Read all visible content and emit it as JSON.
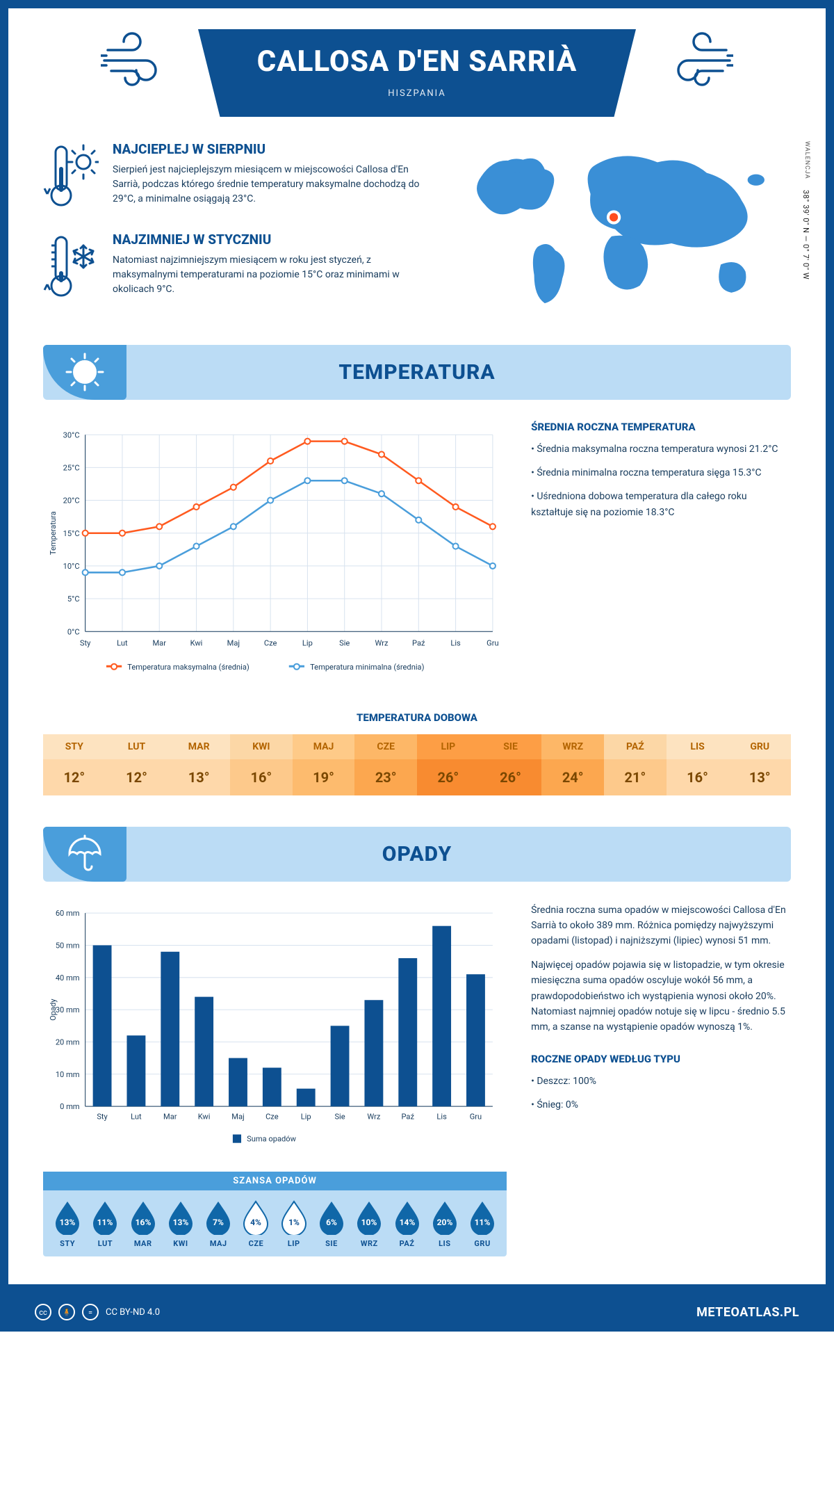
{
  "header": {
    "title": "CALLOSA D'EN SARRIÀ",
    "country": "HISZPANIA"
  },
  "facts": {
    "hot": {
      "title": "NAJCIEPLEJ W SIERPNIU",
      "body": "Sierpień jest najcieplejszym miesiącem w miejscowości Callosa d'En Sarrià, podczas którego średnie temperatury maksymalne dochodzą do 29°C, a minimalne osiągają 23°C."
    },
    "cold": {
      "title": "NAJZIMNIEJ W STYCZNIU",
      "body": "Natomiast najzimniejszym miesiącem w roku jest styczeń, z maksymalnymi temperaturami na poziomie 15°C oraz minimami w okolicach 9°C."
    }
  },
  "coords": {
    "region": "WALENCJA",
    "text": "38° 39' 0\" N — 0° 7' 0\" W"
  },
  "temperature": {
    "section_title": "TEMPERATURA",
    "side_title": "ŚREDNIA ROCZNA TEMPERATURA",
    "bullets": [
      "Średnia maksymalna roczna temperatura wynosi 21.2°C",
      "Średnia minimalna roczna temperatura sięga 15.3°C",
      "Uśredniona dobowa temperatura dla całego roku kształtuje się na poziomie 18.3°C"
    ],
    "chart": {
      "months": [
        "Sty",
        "Lut",
        "Mar",
        "Kwi",
        "Maj",
        "Cze",
        "Lip",
        "Sie",
        "Wrz",
        "Paź",
        "Lis",
        "Gru"
      ],
      "max": [
        15,
        15,
        16,
        19,
        22,
        26,
        29,
        29,
        27,
        23,
        19,
        16
      ],
      "min": [
        9,
        9,
        10,
        13,
        16,
        20,
        23,
        23,
        21,
        17,
        13,
        10
      ],
      "ylim": [
        0,
        30
      ],
      "ytick_step": 5,
      "ylabel": "Temperatura",
      "legend_max": "Temperatura maksymalna (średnia)",
      "legend_min": "Temperatura minimalna (średnia)",
      "color_max": "#ff5a1f",
      "color_min": "#4a9edb",
      "grid_color": "#d8e3ef",
      "axis_label_color": "#173b5c",
      "label_fontsize": 11
    },
    "daily_title": "TEMPERATURA DOBOWA",
    "daily": {
      "months": [
        "STY",
        "LUT",
        "MAR",
        "KWI",
        "MAJ",
        "CZE",
        "LIP",
        "SIE",
        "WRZ",
        "PAŹ",
        "LIS",
        "GRU"
      ],
      "values": [
        "12°",
        "12°",
        "13°",
        "16°",
        "19°",
        "23°",
        "26°",
        "26°",
        "24°",
        "21°",
        "16°",
        "13°"
      ],
      "head_colors": [
        "#fde3c0",
        "#fde3c0",
        "#fde3c0",
        "#fcd7a6",
        "#feca88",
        "#fdb767",
        "#fd9e45",
        "#fd9e45",
        "#fdb767",
        "#fcd7a6",
        "#fde3c0",
        "#fde3c0"
      ],
      "val_colors": [
        "#fed8aa",
        "#fed8aa",
        "#fed8aa",
        "#fdc98b",
        "#fdbb6e",
        "#fca74f",
        "#f88b30",
        "#f88b30",
        "#fca74f",
        "#fdc98b",
        "#fed8aa",
        "#fed8aa"
      ]
    }
  },
  "precip": {
    "section_title": "OPADY",
    "para1": "Średnia roczna suma opadów w miejscowości Callosa d'En Sarrià to około 389 mm. Różnica pomiędzy najwyższymi opadami (listopad) i najniższymi (lipiec) wynosi 51 mm.",
    "para2": "Najwięcej opadów pojawia się w listopadzie, w tym okresie miesięczna suma opadów oscyluje wokół 56 mm, a prawdopodobieństwo ich wystąpienia wynosi około 20%. Natomiast najmniej opadów notuje się w lipcu - średnio 5.5 mm, a szanse na wystąpienie opadów wynoszą 1%.",
    "type_title": "ROCZNE OPADY WEDŁUG TYPU",
    "type_bullets": [
      "Deszcz: 100%",
      "Śnieg: 0%"
    ],
    "chart": {
      "months": [
        "Sty",
        "Lut",
        "Mar",
        "Kwi",
        "Maj",
        "Cze",
        "Lip",
        "Sie",
        "Wrz",
        "Paź",
        "Lis",
        "Gru"
      ],
      "values": [
        50,
        22,
        48,
        34,
        15,
        12,
        5.5,
        25,
        33,
        46,
        56,
        41
      ],
      "ylim": [
        0,
        60
      ],
      "ytick_step": 10,
      "ylabel": "Opady",
      "legend": "Suma opadów",
      "bar_color": "#0d5091",
      "grid_color": "#d8e3ef",
      "axis_label_color": "#173b5c",
      "label_fontsize": 11
    },
    "chance": {
      "title": "SZANSA OPADÓW",
      "months": [
        "STY",
        "LUT",
        "MAR",
        "KWI",
        "MAJ",
        "CZE",
        "LIP",
        "SIE",
        "WRZ",
        "PAŹ",
        "LIS",
        "GRU"
      ],
      "values": [
        "13%",
        "11%",
        "16%",
        "13%",
        "7%",
        "4%",
        "1%",
        "6%",
        "10%",
        "14%",
        "20%",
        "11%"
      ],
      "fill_dark": "#1067a8",
      "fill_light": "#ffffff",
      "threshold_light": 5
    }
  },
  "colors": {
    "primary": "#0d5091",
    "accent": "#4a9edb",
    "light_blue": "#bbdcf5",
    "map_blue": "#3a8fd6",
    "marker": "#ff4d1f"
  },
  "footer": {
    "license": "CC BY-ND 4.0",
    "site": "METEOATLAS.PL"
  }
}
